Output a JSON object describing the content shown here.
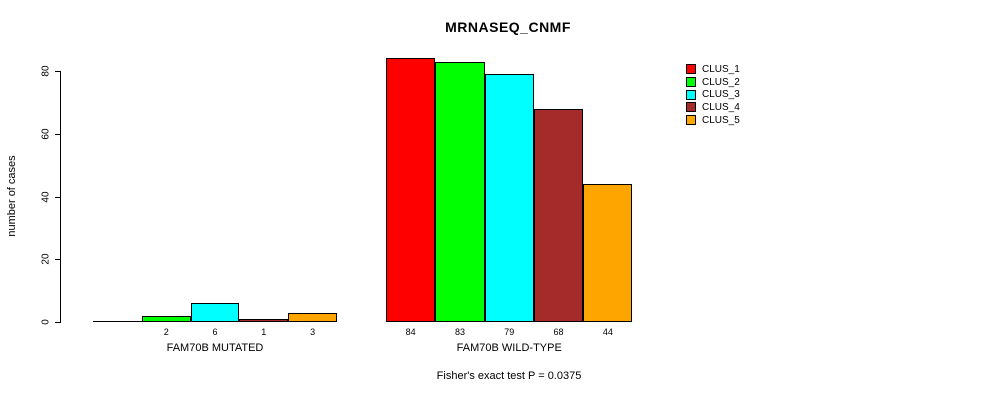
{
  "title": "MRNASEQ_CNMF",
  "y_axis": {
    "label": "number of cases",
    "ticks": [
      0,
      20,
      40,
      60,
      80
    ]
  },
  "footer": "Fisher's exact test P = 0.0375",
  "legend": {
    "entries": [
      {
        "label": "CLUS_1",
        "color": "#FF0000"
      },
      {
        "label": "CLUS_2",
        "color": "#00FF00"
      },
      {
        "label": "CLUS_3",
        "color": "#00FFFF"
      },
      {
        "label": "CLUS_4",
        "color": "#A52A2A"
      },
      {
        "label": "CLUS_5",
        "color": "#FFA500"
      }
    ]
  },
  "chart_data": {
    "type": "bar",
    "title": "MRNASEQ_CNMF",
    "xlabel": "",
    "ylabel": "number of cases",
    "ylim": [
      0,
      80
    ],
    "yticks": [
      0,
      20,
      40,
      60,
      80
    ],
    "grid": false,
    "legend_position": "right",
    "categories": [
      "FAM70B MUTATED",
      "FAM70B WILD-TYPE"
    ],
    "series": [
      {
        "name": "CLUS_1",
        "color": "#FF0000",
        "values": [
          0,
          84
        ]
      },
      {
        "name": "CLUS_2",
        "color": "#00FF00",
        "values": [
          2,
          83
        ]
      },
      {
        "name": "CLUS_3",
        "color": "#00FFFF",
        "values": [
          6,
          79
        ]
      },
      {
        "name": "CLUS_4",
        "color": "#A52A2A",
        "values": [
          1,
          68
        ]
      },
      {
        "name": "CLUS_5",
        "color": "#FFA500",
        "values": [
          3,
          44
        ]
      }
    ],
    "bar_value_labels": [
      [
        "",
        "2",
        "6",
        "1",
        "3"
      ],
      [
        "84",
        "83",
        "79",
        "68",
        "44"
      ]
    ],
    "annotation": "Fisher's exact test P = 0.0375"
  }
}
